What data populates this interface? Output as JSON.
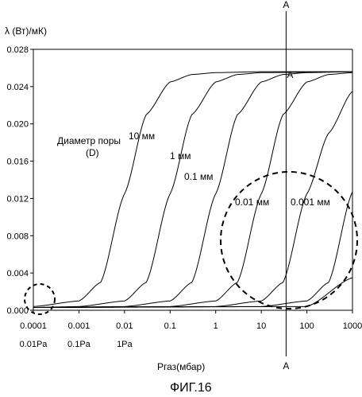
{
  "chart_data": {
    "type": "line",
    "ylabel": "λ (Вт)/мК)",
    "xlabel": "Pгаз(мбар)",
    "caption": "ФИГ.16",
    "x_scale": "log",
    "xlim": [
      0.0001,
      1000
    ],
    "ylim": [
      0,
      0.028
    ],
    "x_ticks": [
      "0.0001",
      "0.001",
      "0.01",
      "0.1",
      "1",
      "10",
      "100",
      "1000"
    ],
    "x_ticks_pa": [
      "0.01Pa",
      "0.1Pa",
      "1Pa"
    ],
    "y_ticks": [
      "0.000",
      "0.004",
      "0.008",
      "0.012",
      "0.016",
      "0.020",
      "0.024",
      "0.028"
    ],
    "legend_title": "Диаметр поры\n(D)",
    "marker_line_label": "A",
    "series": [
      {
        "name": "10 мм",
        "x": [
          0.0001,
          0.001,
          0.003,
          0.01,
          0.03,
          0.1,
          0.3,
          1,
          10,
          1000
        ],
        "y": [
          0.0004,
          0.001,
          0.003,
          0.0125,
          0.021,
          0.0245,
          0.0253,
          0.0255,
          0.0256,
          0.0256
        ]
      },
      {
        "name": "1 мм",
        "x": [
          0.0001,
          0.001,
          0.01,
          0.03,
          0.1,
          0.3,
          1,
          3,
          10,
          1000
        ],
        "y": [
          0.0003,
          0.0004,
          0.001,
          0.003,
          0.0125,
          0.021,
          0.0245,
          0.0253,
          0.0255,
          0.0256
        ]
      },
      {
        "name": "0.1 мм",
        "x": [
          0.0001,
          0.01,
          0.1,
          0.3,
          1,
          3,
          10,
          30,
          100,
          1000
        ],
        "y": [
          0.0003,
          0.0004,
          0.001,
          0.003,
          0.0125,
          0.021,
          0.0245,
          0.0253,
          0.0255,
          0.0256
        ]
      },
      {
        "name": "0.01 мм",
        "x": [
          0.0001,
          0.1,
          1,
          3,
          10,
          30,
          100,
          300,
          1000
        ],
        "y": [
          0.0003,
          0.0004,
          0.001,
          0.003,
          0.0125,
          0.021,
          0.0245,
          0.0253,
          0.0255
        ]
      },
      {
        "name": "0.001 мм",
        "x": [
          0.0001,
          1,
          10,
          30,
          100,
          300,
          1000
        ],
        "y": [
          0.0003,
          0.0004,
          0.001,
          0.003,
          0.0125,
          0.019,
          0.0235
        ]
      },
      {
        "name": "",
        "x": [
          0.0001,
          10,
          100,
          300,
          1000
        ],
        "y": [
          0.0003,
          0.0004,
          0.001,
          0.003,
          0.0127
        ]
      },
      {
        "name": "",
        "x": [
          0.0001,
          100,
          1000
        ],
        "y": [
          0.0003,
          0.0004,
          0.0035
        ]
      }
    ],
    "vertical_marker_x": 35,
    "grid": false
  }
}
